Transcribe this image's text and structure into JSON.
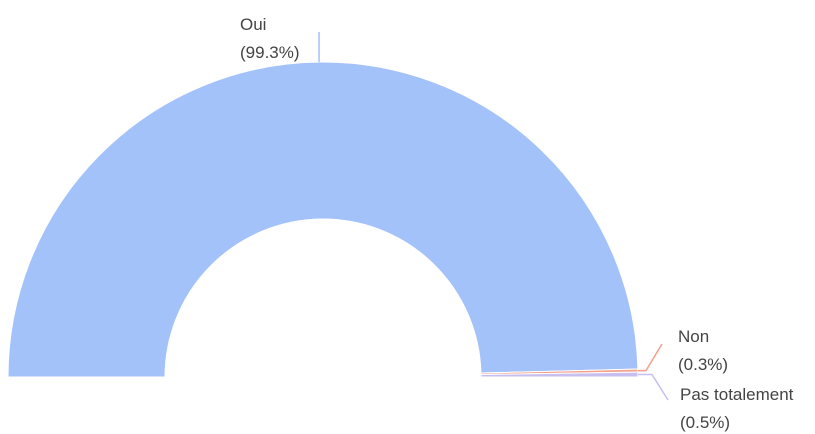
{
  "chart_data": {
    "type": "pie",
    "subtype": "half-donut",
    "slices": [
      {
        "label": "Oui",
        "value": 99.3,
        "value_label": "(99.3%)",
        "color": "#a4c2fa"
      },
      {
        "label": "Non",
        "value": 0.3,
        "value_label": "(0.3%)",
        "color": "#f4a08a"
      },
      {
        "label": "Pas totalement",
        "value": 0.5,
        "value_label": "(0.5%)",
        "color": "#c7bff0"
      }
    ]
  }
}
